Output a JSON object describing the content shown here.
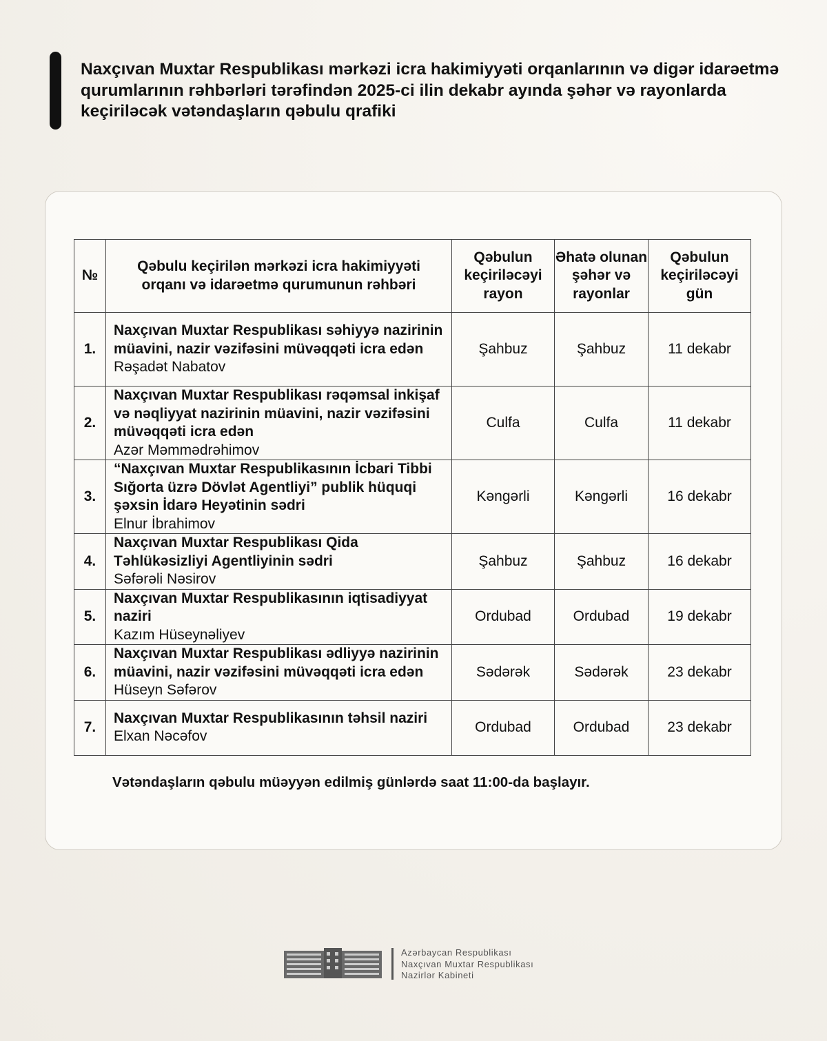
{
  "title": "Naxçıvan Muxtar Respublikası mərkəzi icra hakimiyyəti orqanlarının və digər idarəetmə qurumlarının rəhbərləri tərəfindən 2025-ci ilin dekabr ayında şəhər və rayonlarda keçiriləcək vətəndaşların qəbulu qrafiki",
  "table": {
    "headers": [
      "№",
      "Qəbulu keçirilən mərkəzi icra hakimiyyəti orqanı və idarəetmə qurumunun rəhbəri",
      "Qəbulun keçiriləcəyi rayon",
      "Əhatə olunan şəhər və rayonlar",
      "Qəbulun keçiriləcəyi gün"
    ],
    "rows": [
      {
        "num": "1.",
        "org": "Naxçıvan Muxtar Respublikası səhiyyə nazirinin müavini, nazir vəzifəsini müvəqqəti icra edən",
        "person": "Rəşadət Nabatov",
        "district": "Şahbuz",
        "covered": "Şahbuz",
        "day": "11 dekabr"
      },
      {
        "num": "2.",
        "org": "Naxçıvan Muxtar Respublikası rəqəmsal inkişaf və nəqliyyat nazirinin müavini, nazir vəzifəsini müvəqqəti icra edən",
        "person": "Azər Məmmədrəhimov",
        "district": "Culfa",
        "covered": "Culfa",
        "day": "11 dekabr"
      },
      {
        "num": "3.",
        "org": "“Naxçıvan Muxtar Respublikasının İcbari Tibbi Sığorta üzrə Dövlət Agentliyi” publik hüquqi şəxsin İdarə Heyətinin sədri",
        "person": "Elnur İbrahimov",
        "district": "Kəngərli",
        "covered": "Kəngərli",
        "day": "16 dekabr"
      },
      {
        "num": "4.",
        "org": "Naxçıvan Muxtar Respublikası Qida Təhlükəsizliyi Agentliyinin sədri",
        "person": "Səfərəli Nəsirov",
        "district": "Şahbuz",
        "covered": "Şahbuz",
        "day": "16 dekabr"
      },
      {
        "num": "5.",
        "org": "Naxçıvan Muxtar Respublikasının iqtisadiyyat naziri",
        "person": "Kazım Hüseynəliyev",
        "district": "Ordubad",
        "covered": "Ordubad",
        "day": "19 dekabr"
      },
      {
        "num": "6.",
        "org": "Naxçıvan Muxtar Respublikası ədliyyə nazirinin müavini, nazir vəzifəsini müvəqqəti icra edən",
        "person": "Hüseyn Səfərov",
        "district": "Sədərək",
        "covered": "Sədərək",
        "day": "23 dekabr"
      },
      {
        "num": "7.",
        "org": "Naxçıvan Muxtar Respublikasının təhsil naziri",
        "person": "Elxan Nəcəfov",
        "district": "Ordubad",
        "covered": "Ordubad",
        "day": "23 dekabr"
      }
    ]
  },
  "note": "Vətəndaşların qəbulu müəyyən edilmiş günlərdə saat 11:00-da başlayır.",
  "footer": {
    "logo_icon": "government-building-icon",
    "lines": [
      "Azərbaycan Respublikası",
      "Naxçıvan Muxtar Respublikası",
      "Nazirlər Kabineti"
    ]
  }
}
